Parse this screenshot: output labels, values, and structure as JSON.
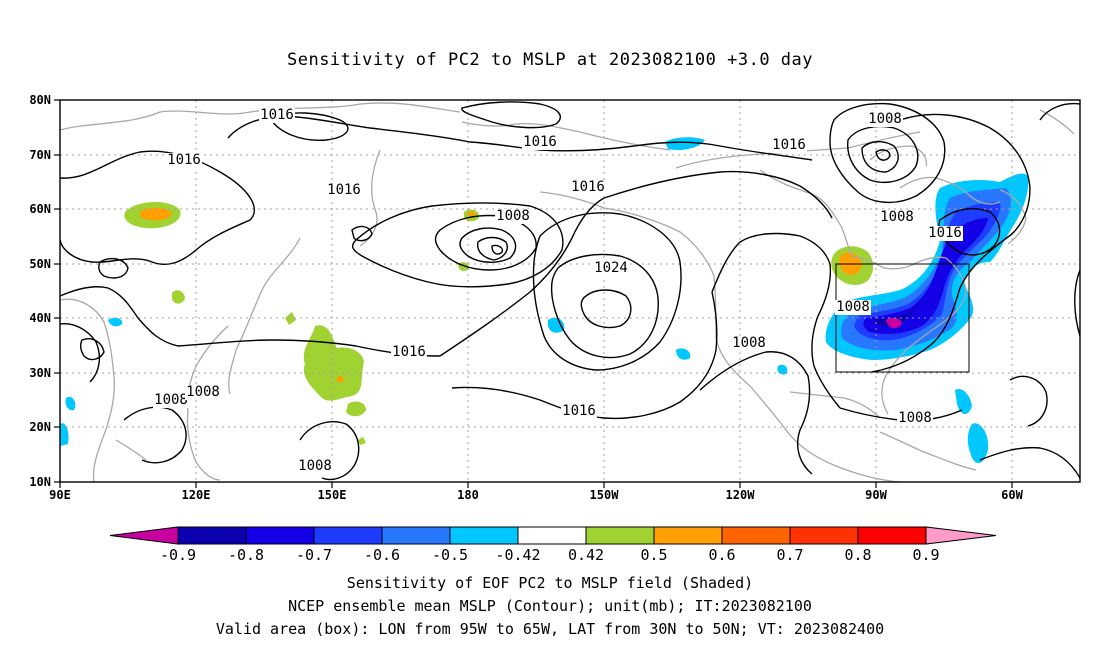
{
  "title": "Sensitivity of PC2 to MSLP at 2023082100 +3.0 day",
  "map": {
    "lat_ticks": [
      "80N",
      "70N",
      "60N",
      "50N",
      "40N",
      "30N",
      "20N",
      "10N"
    ],
    "lon_ticks": [
      "90E",
      "120E",
      "150E",
      "180",
      "150W",
      "120W",
      "90W",
      "60W"
    ],
    "contour_labels": [
      {
        "text": "1016"
      },
      {
        "text": "1016"
      },
      {
        "text": "1016"
      },
      {
        "text": "1016"
      },
      {
        "text": "1016"
      },
      {
        "text": "1016"
      },
      {
        "text": "1016"
      },
      {
        "text": "1016"
      },
      {
        "text": "1008"
      },
      {
        "text": "1008"
      },
      {
        "text": "1008"
      },
      {
        "text": "1008"
      },
      {
        "text": "1008"
      },
      {
        "text": "1008"
      },
      {
        "text": "1008"
      },
      {
        "text": "1008"
      },
      {
        "text": "1024"
      }
    ],
    "valid_box": {
      "lon_from": "95W",
      "lon_to": "65W",
      "lat_from": "30N",
      "lat_to": "50N"
    }
  },
  "colorbar": {
    "labels": [
      "-0.9",
      "-0.8",
      "-0.7",
      "-0.6",
      "-0.5",
      "-0.42",
      "0.42",
      "0.5",
      "0.6",
      "0.7",
      "0.8",
      "0.9"
    ],
    "colors": [
      "#0b00b0",
      "#1400e6",
      "#1e3cff",
      "#2878ff",
      "#00c8ff",
      "#ffffff",
      "#a0d232",
      "#ffa000",
      "#ff6400",
      "#ff3200",
      "#ff0000"
    ],
    "low_end_color": "#c800a0",
    "high_end_color": "#ff9bc8"
  },
  "captions": {
    "line1": "Sensitivity of EOF PC2 to MSLP field (Shaded)",
    "line2": "NCEP ensemble mean MSLP (Contour); unit(mb); IT:2023082100",
    "line3": "Valid area (box): LON from 95W to 65W, LAT from 30N to 50N; VT: 2023082400"
  }
}
